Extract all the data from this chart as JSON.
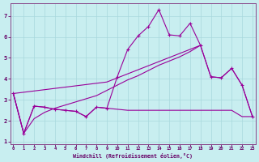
{
  "xlabel": "Windchill (Refroidissement éolien,°C)",
  "bg_color": "#c8eef0",
  "grid_color": "#a8d8dc",
  "line_color": "#990099",
  "xlim": [
    -0.3,
    23.3
  ],
  "ylim": [
    0.9,
    7.6
  ],
  "xticks": [
    0,
    1,
    2,
    3,
    4,
    5,
    6,
    7,
    8,
    9,
    10,
    11,
    12,
    13,
    14,
    15,
    16,
    17,
    18,
    19,
    20,
    21,
    22,
    23
  ],
  "yticks": [
    1,
    2,
    3,
    4,
    5,
    6,
    7
  ],
  "line1_x": [
    0,
    1,
    2,
    3,
    4,
    5,
    6,
    7,
    8,
    9,
    10,
    11,
    12,
    13,
    14,
    15,
    16,
    17,
    18,
    19,
    20,
    21,
    22,
    23
  ],
  "line1_y": [
    3.3,
    1.4,
    2.7,
    2.65,
    2.55,
    2.5,
    2.45,
    2.2,
    2.65,
    2.6,
    4.1,
    5.4,
    6.05,
    6.5,
    7.3,
    6.1,
    6.05,
    6.65,
    5.6,
    4.1,
    4.05,
    4.5,
    3.7,
    2.2
  ],
  "line2_x": [
    0,
    1,
    2,
    3,
    4,
    5,
    6,
    7,
    8,
    9,
    10,
    11,
    12,
    13,
    14,
    15,
    16,
    17,
    18
  ],
  "line2_y": [
    3.3,
    1.4,
    2.1,
    2.4,
    2.6,
    2.75,
    2.9,
    3.05,
    3.2,
    3.45,
    3.7,
    3.95,
    4.15,
    4.4,
    4.65,
    4.85,
    5.05,
    5.3,
    5.6
  ],
  "line3_x": [
    0,
    1,
    2,
    3,
    4,
    5,
    6,
    7,
    8,
    9,
    10,
    11,
    12,
    13,
    14,
    15,
    16,
    17,
    18,
    19,
    20,
    21,
    22,
    23
  ],
  "line3_y": [
    3.3,
    1.4,
    2.7,
    2.65,
    2.55,
    2.5,
    2.45,
    2.2,
    2.65,
    2.6,
    2.55,
    2.5,
    2.5,
    2.5,
    2.5,
    2.5,
    2.5,
    2.5,
    2.5,
    2.5,
    2.5,
    2.5,
    2.2,
    2.2
  ],
  "line4_x": [
    0,
    9,
    18,
    19,
    20,
    21,
    22,
    23
  ],
  "line4_y": [
    3.3,
    3.85,
    5.6,
    4.1,
    4.05,
    4.5,
    3.7,
    2.2
  ]
}
